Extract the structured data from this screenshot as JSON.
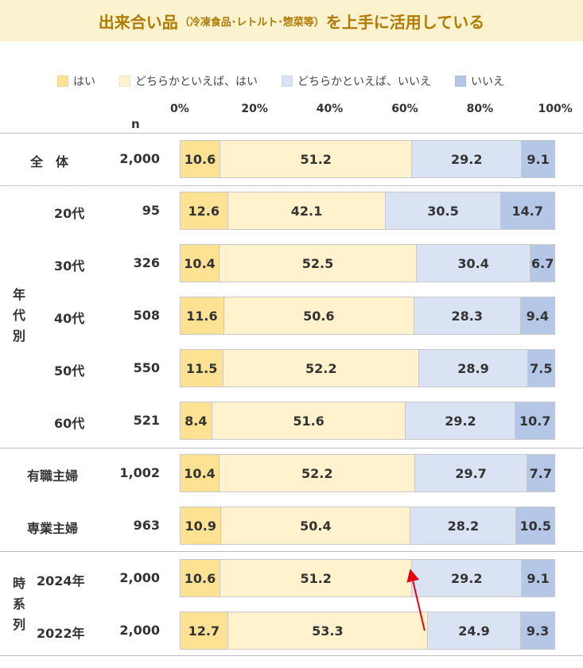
{
  "title": {
    "main": "出来合い品",
    "sub": "（冷凍食品･レトルト･惣菜等）",
    "suffix": "を上手に活用している"
  },
  "n_header": "n",
  "chart_data": {
    "type": "bar",
    "orientation": "horizontal-stacked-100",
    "x_ticks": [
      "0%",
      "20%",
      "40%",
      "60%",
      "80%",
      "100%"
    ],
    "xlim": [
      0,
      100
    ],
    "legend": [
      {
        "name": "はい",
        "color": "#fde294"
      },
      {
        "name": "どちらかといえば、はい",
        "color": "#fff2cc"
      },
      {
        "name": "どちらかといえば、いいえ",
        "color": "#dae3f3"
      },
      {
        "name": "いいえ",
        "color": "#b4c7e7"
      }
    ],
    "groups": [
      {
        "label": "",
        "rows": [
          0
        ]
      },
      {
        "label": "年代別",
        "rows": [
          1,
          2,
          3,
          4,
          5
        ]
      },
      {
        "label": "",
        "rows": [
          6,
          7
        ]
      },
      {
        "label": "時系列",
        "rows": [
          8,
          9
        ]
      }
    ],
    "rows": [
      {
        "label": "全　体",
        "n": "2,000",
        "values": [
          10.6,
          51.2,
          29.2,
          9.1
        ]
      },
      {
        "label": "20代",
        "n": "95",
        "values": [
          12.6,
          42.1,
          30.5,
          14.7
        ]
      },
      {
        "label": "30代",
        "n": "326",
        "values": [
          10.4,
          52.5,
          30.4,
          6.7
        ]
      },
      {
        "label": "40代",
        "n": "508",
        "values": [
          11.6,
          50.6,
          28.3,
          9.4
        ]
      },
      {
        "label": "50代",
        "n": "550",
        "values": [
          11.5,
          52.2,
          28.9,
          7.5
        ]
      },
      {
        "label": "60代",
        "n": "521",
        "values": [
          8.4,
          51.6,
          29.2,
          10.7
        ]
      },
      {
        "label": "有職主婦",
        "n": "1,002",
        "values": [
          10.4,
          52.2,
          29.7,
          7.7
        ]
      },
      {
        "label": "専業主婦",
        "n": "963",
        "values": [
          10.9,
          50.4,
          28.2,
          10.5
        ]
      },
      {
        "label": "2024年",
        "n": "2,000",
        "values": [
          10.6,
          51.2,
          29.2,
          9.1
        ]
      },
      {
        "label": "2022年",
        "n": "2,000",
        "values": [
          12.7,
          53.3,
          24.9,
          9.3
        ]
      }
    ],
    "annotations": [
      {
        "type": "arrow",
        "from_row": 9,
        "to_row": 8,
        "color": "#e60012"
      }
    ]
  }
}
